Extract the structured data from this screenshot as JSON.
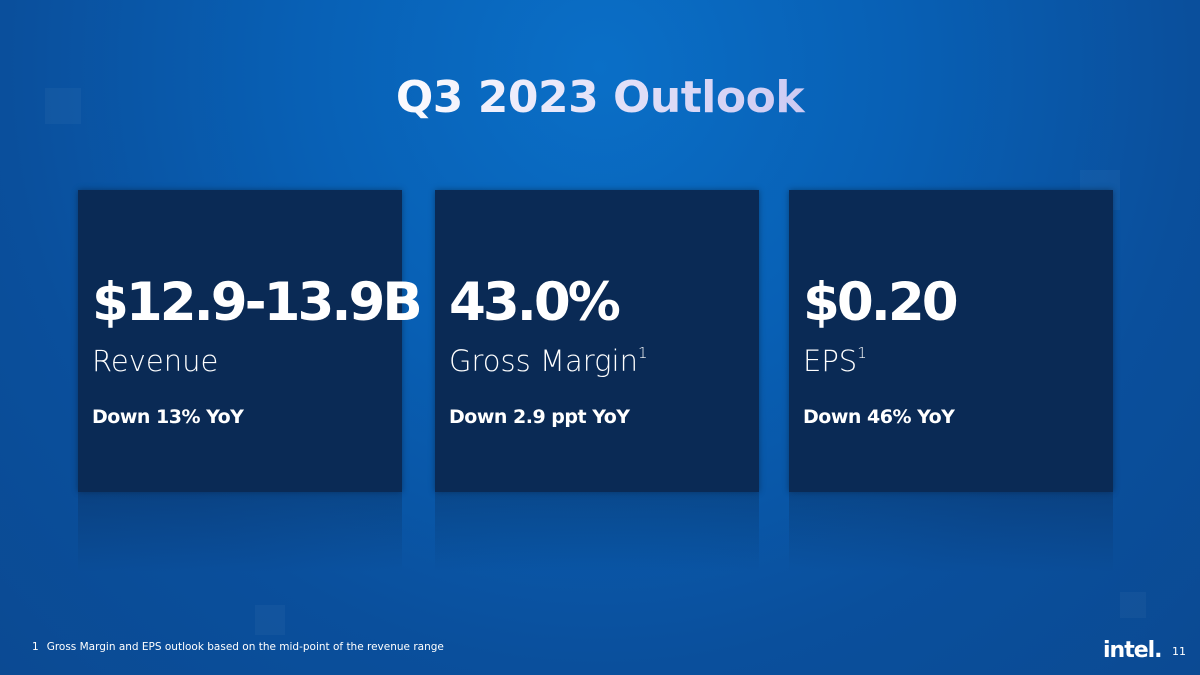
{
  "title": "Q3 2023 Outlook",
  "cards": [
    {
      "value": "$12.9-13.9B",
      "label": "Revenue",
      "note": "Down 13% YoY"
    },
    {
      "value": "43.0%",
      "label": "Gross Margin",
      "superscript": "1",
      "note": "Down 2.9 ppt YoY"
    },
    {
      "value": "$0.20",
      "label": "EPS",
      "superscript": "1",
      "note": "Down 46% YoY"
    }
  ],
  "footnote": {
    "marker": "1",
    "text": "Gross Margin and EPS outlook based on the mid-point of the revenue range"
  },
  "logo": "intel.",
  "page_number": "11"
}
